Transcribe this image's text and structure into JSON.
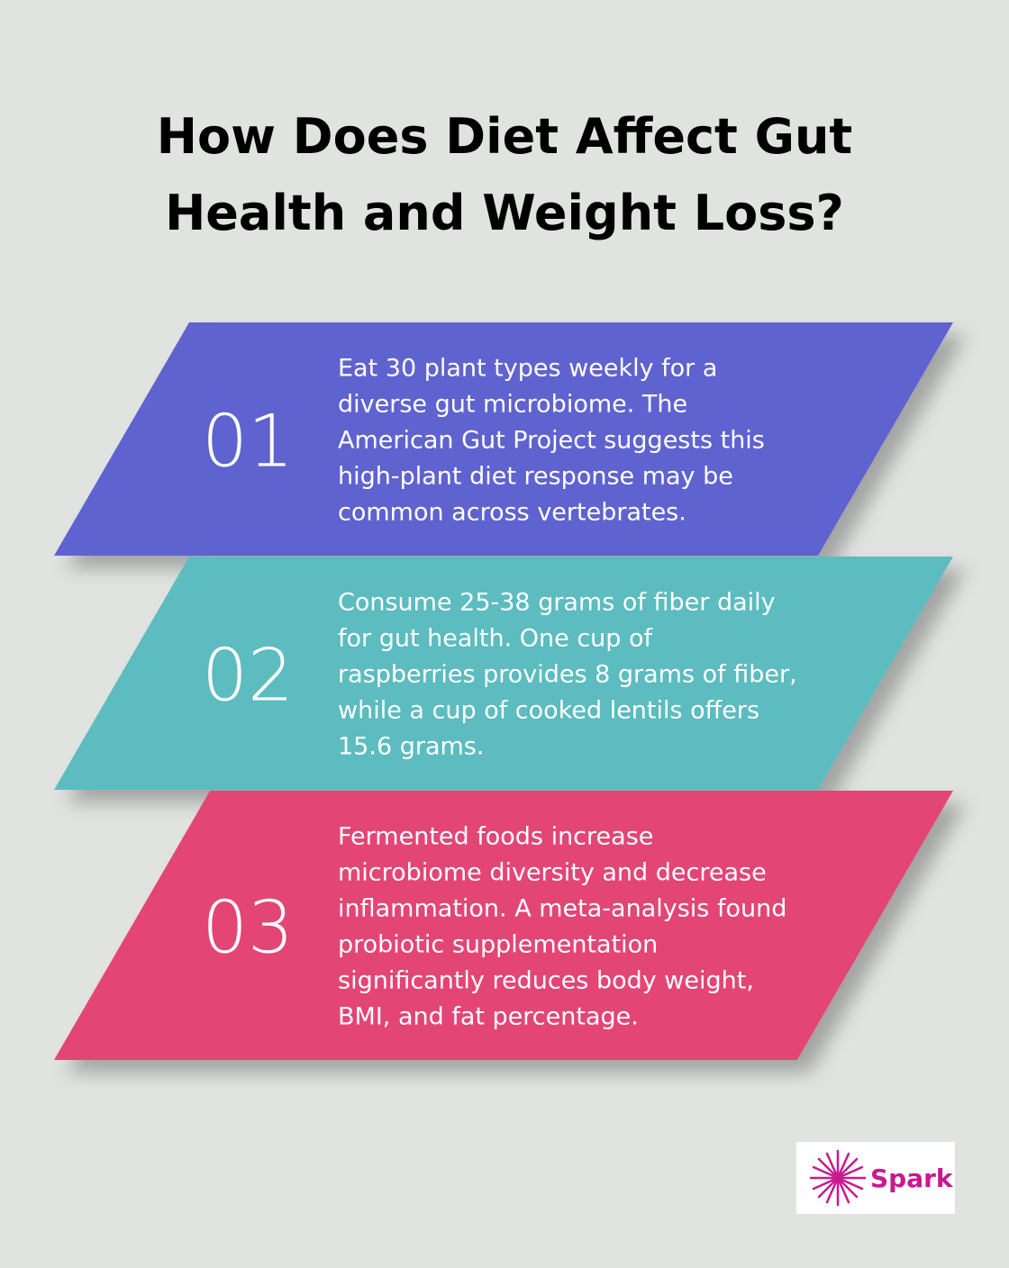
{
  "header": {
    "title_lines": [
      "How Does Diet Affect Gut",
      "Health and Weight Loss?"
    ]
  },
  "items": [
    {
      "number": "01",
      "color": "#5f63cf",
      "lines": [
        "Eat 30 plant types weekly for a",
        "diverse gut microbiome. The",
        "American Gut Project suggests this",
        "high-plant diet response may be",
        "common across vertebrates."
      ]
    },
    {
      "number": "02",
      "color": "#5bbcbf",
      "lines": [
        "Consume 25-38 grams of fiber daily",
        "for gut health. One cup of",
        "raspberries provides 8 grams of fiber,",
        "while a cup of cooked lentils offers",
        "15.6 grams."
      ]
    },
    {
      "number": "03",
      "color": "#e34475",
      "lines": [
        "Fermented foods increase",
        "microbiome diversity and decrease",
        "inflammation. A meta-analysis found",
        "probiotic supplementation",
        "significantly reduces body weight,",
        "BMI, and fat percentage."
      ]
    }
  ],
  "logo": {
    "text": "Spark"
  }
}
